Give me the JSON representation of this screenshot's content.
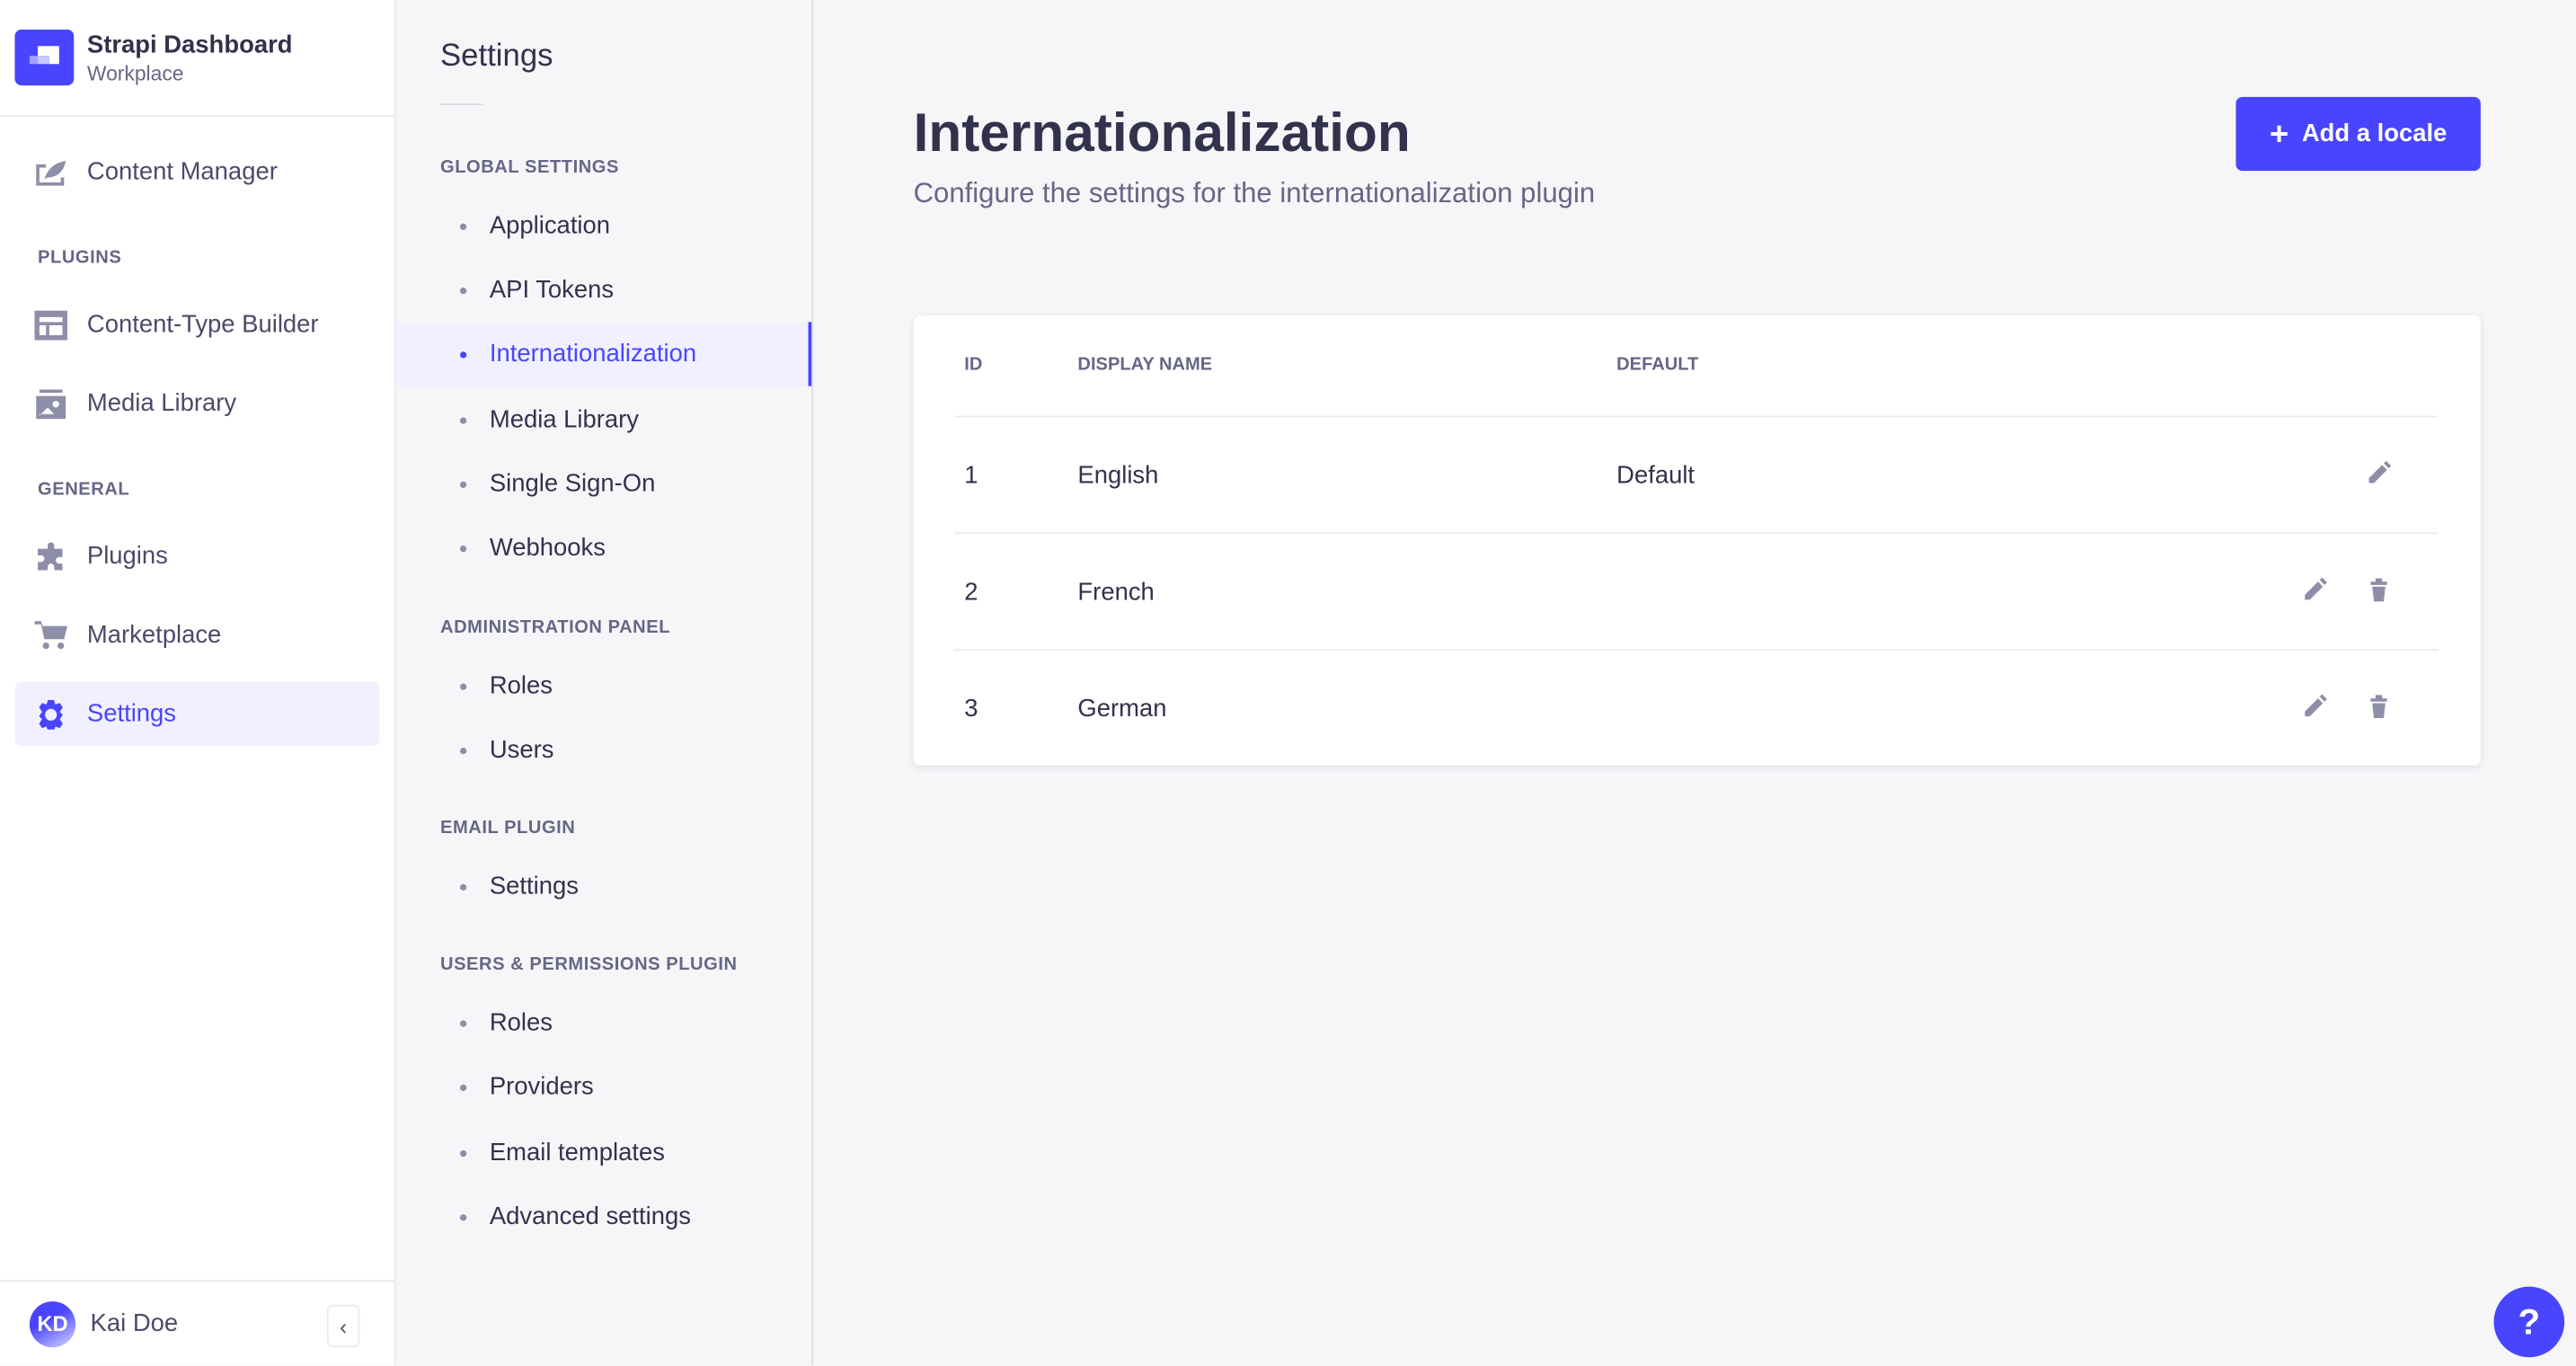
{
  "brand": {
    "title": "Strapi Dashboard",
    "subtitle": "Workplace"
  },
  "nav": {
    "content_manager": "Content Manager",
    "plugins_section": "PLUGINS",
    "content_type_builder": "Content-Type Builder",
    "media_library": "Media Library",
    "general_section": "GENERAL",
    "plugins": "Plugins",
    "marketplace": "Marketplace",
    "settings": "Settings"
  },
  "user": {
    "initials": "KD",
    "name": "Kai Doe"
  },
  "settings_nav": {
    "title": "Settings",
    "sections": [
      {
        "label": "GLOBAL SETTINGS",
        "items": [
          "Application",
          "API Tokens",
          "Internationalization",
          "Media Library",
          "Single Sign-On",
          "Webhooks"
        ]
      },
      {
        "label": "ADMINISTRATION PANEL",
        "items": [
          "Roles",
          "Users"
        ]
      },
      {
        "label": "EMAIL PLUGIN",
        "items": [
          "Settings"
        ]
      },
      {
        "label": "USERS & PERMISSIONS PLUGIN",
        "items": [
          "Roles",
          "Providers",
          "Email templates",
          "Advanced settings"
        ]
      }
    ],
    "active": "Internationalization"
  },
  "page": {
    "title": "Internationalization",
    "subtitle": "Configure the settings for the internationalization plugin",
    "add_button": "Add a locale"
  },
  "table": {
    "headers": [
      "ID",
      "DISPLAY NAME",
      "DEFAULT"
    ],
    "rows": [
      {
        "id": "1",
        "name": "English",
        "default": "Default"
      },
      {
        "id": "2",
        "name": "French",
        "default": ""
      },
      {
        "id": "3",
        "name": "German",
        "default": ""
      }
    ]
  },
  "help": "?",
  "colors": {
    "primary": "#4945ff",
    "text": "#32324d",
    "muted": "#666687"
  }
}
